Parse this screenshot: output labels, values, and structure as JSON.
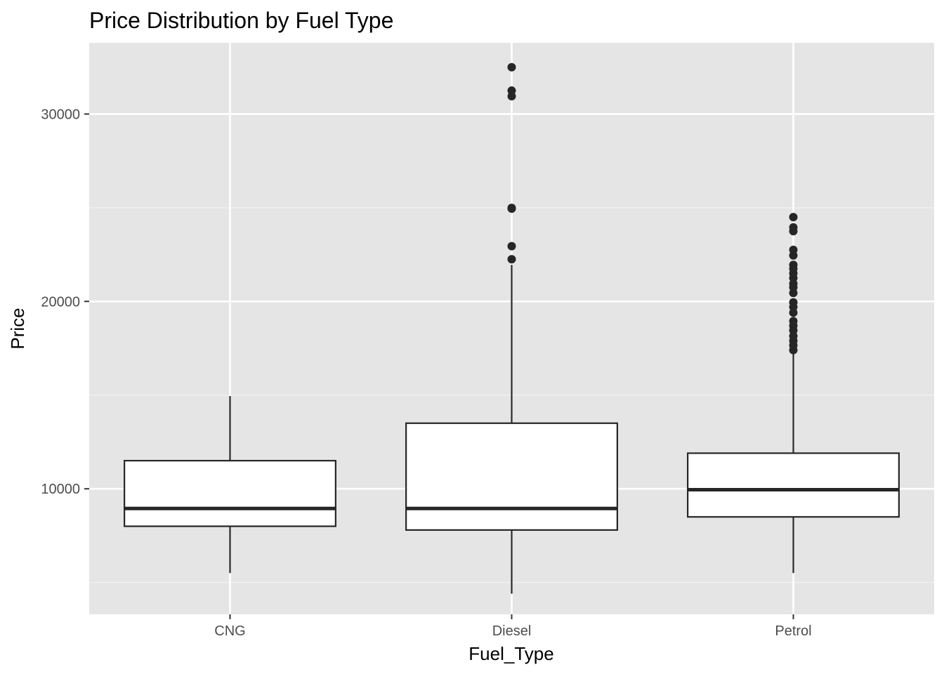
{
  "chart_data": {
    "type": "boxplot",
    "title": "Price Distribution by Fuel Type",
    "xlabel": "Fuel_Type",
    "ylabel": "Price",
    "ylim": [
      3300,
      33800
    ],
    "y_ticks": [
      10000,
      20000,
      30000
    ],
    "y_tick_labels": [
      "10000",
      "20000",
      "30000"
    ],
    "grid": true,
    "legend": "none",
    "colors": {
      "panel_background": "#e5e5e5",
      "grid_major": "#ffffff",
      "grid_minor": "#f2f2f2",
      "box_fill": "#ffffff",
      "box_outline": "#262626",
      "outlier": "#262626",
      "tick_label": "#4d4d4d"
    },
    "categories": [
      "CNG",
      "Diesel",
      "Petrol"
    ],
    "boxes": [
      {
        "category": "CNG",
        "whisker_low": 5500,
        "q1": 8000,
        "median": 8950,
        "q3": 11500,
        "whisker_high": 14950,
        "outliers": []
      },
      {
        "category": "Diesel",
        "whisker_low": 4400,
        "q1": 7800,
        "median": 8950,
        "q3": 13500,
        "whisker_high": 21950,
        "outliers": [
          22250,
          22950,
          24950,
          24990,
          30950,
          31250,
          32500
        ]
      },
      {
        "category": "Petrol",
        "whisker_low": 5500,
        "q1": 8500,
        "median": 9950,
        "q3": 11900,
        "whisker_high": 17200,
        "outliers": [
          17400,
          17650,
          17900,
          18150,
          18450,
          18700,
          18950,
          19400,
          19700,
          19950,
          20450,
          20750,
          20950,
          21250,
          21500,
          21750,
          21950,
          22450,
          22750,
          23750,
          23950,
          24500
        ]
      }
    ]
  }
}
